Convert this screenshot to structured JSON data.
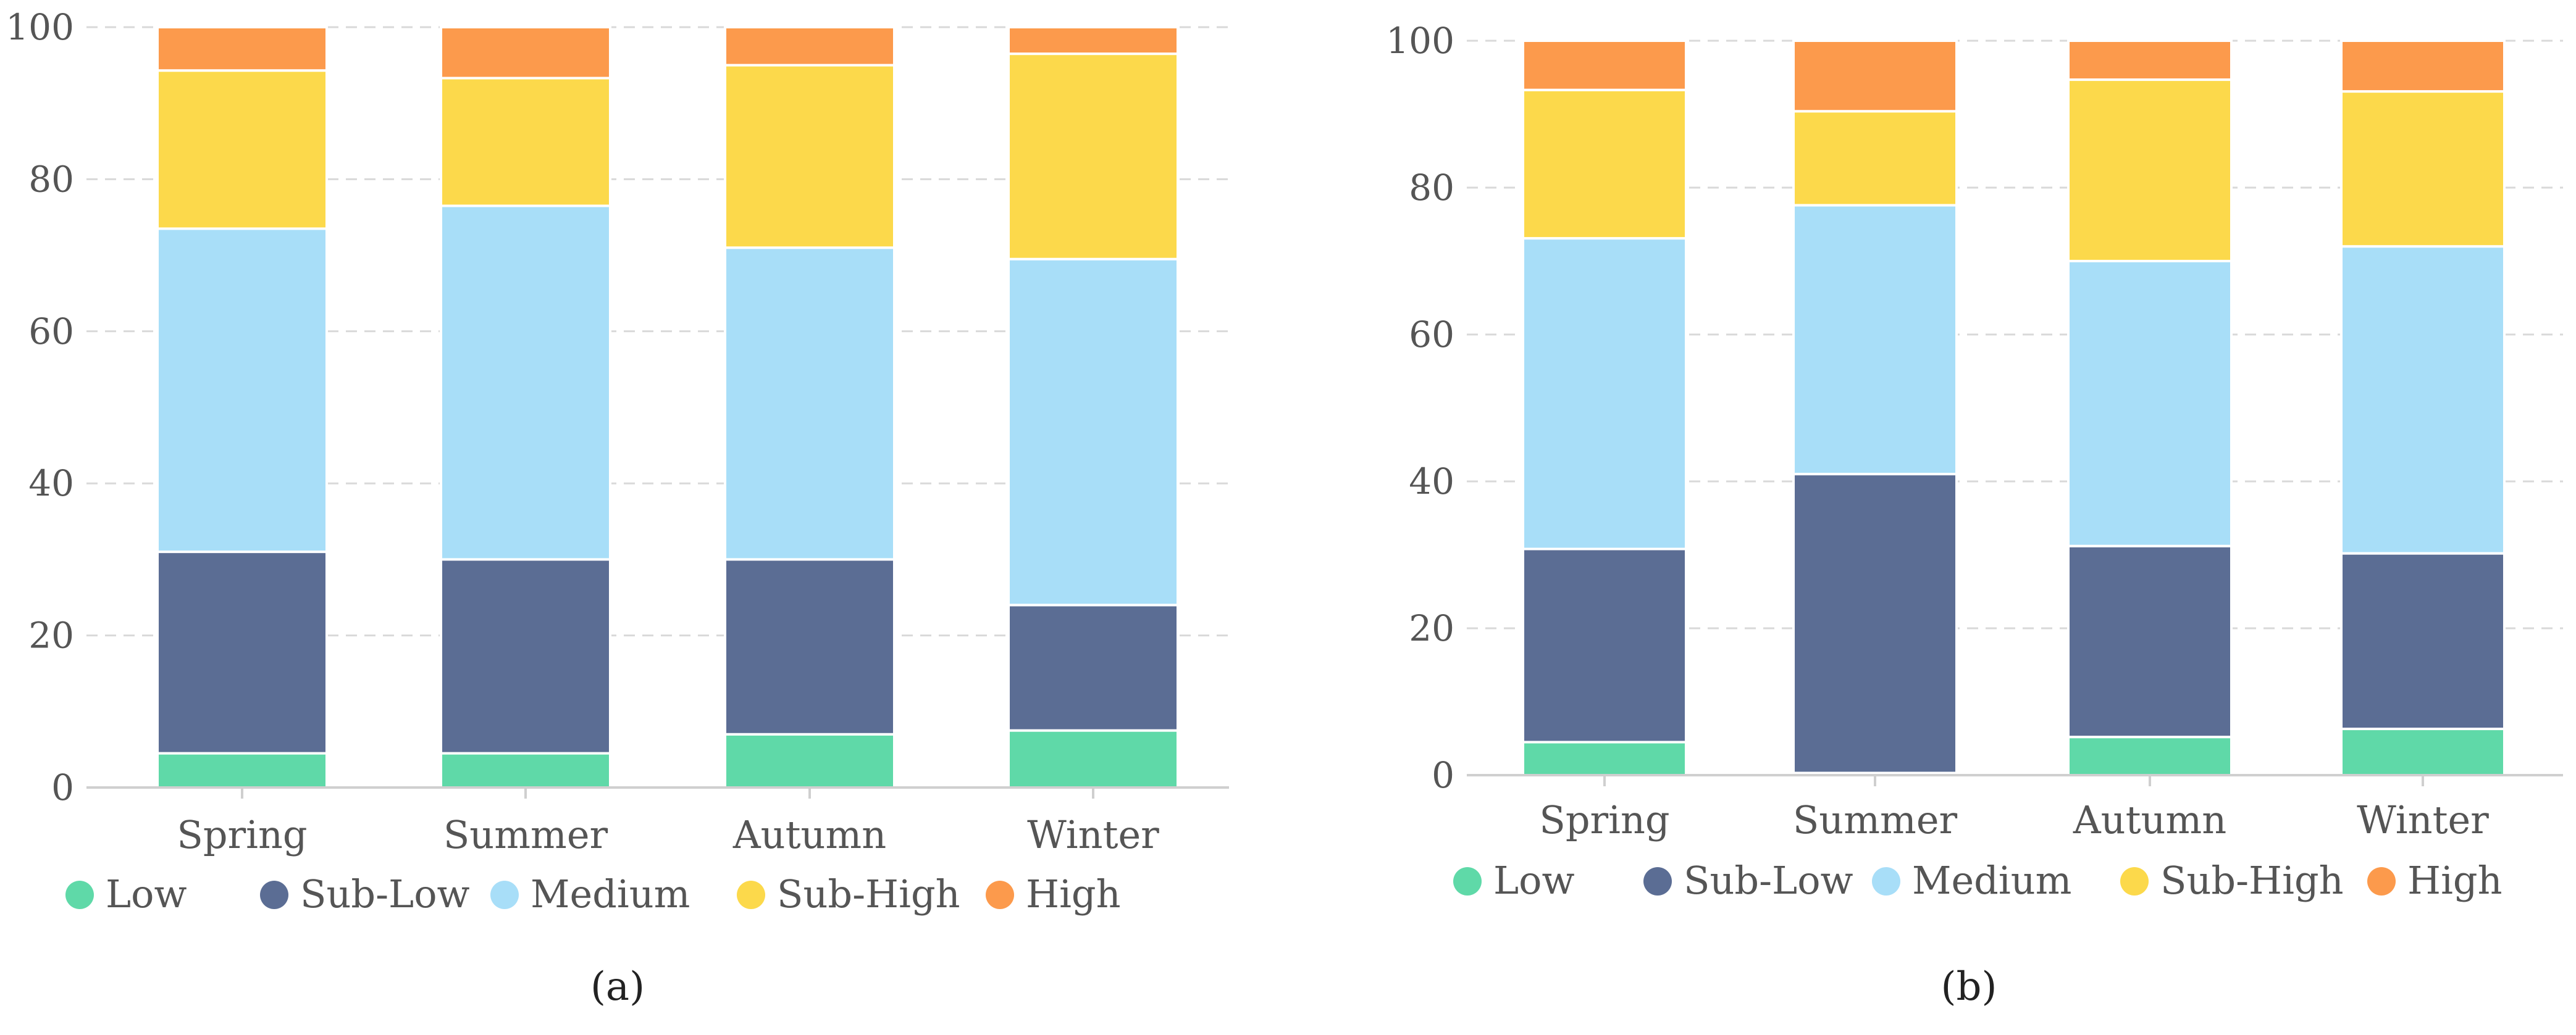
{
  "chart_data": [
    {
      "type": "bar",
      "stacked": true,
      "panel_label": "(a)",
      "categories": [
        "Spring",
        "Summer",
        "Autumn",
        "Winter"
      ],
      "ylim": [
        0,
        100
      ],
      "yticks": [
        "0",
        "20",
        "40",
        "60",
        "80",
        "100"
      ],
      "grid": true,
      "legend_position": "bottom",
      "series": [
        {
          "name": "Low",
          "color": "#5fd9a8",
          "values": [
            4.5,
            4.5,
            7,
            7.5
          ]
        },
        {
          "name": "Sub-Low",
          "color": "#5b6d94",
          "values": [
            26.5,
            25.5,
            23,
            16.5
          ]
        },
        {
          "name": "Medium",
          "color": "#a8def8",
          "values": [
            42.5,
            46.5,
            41,
            45.5
          ]
        },
        {
          "name": "Sub-High",
          "color": "#fcd94b",
          "values": [
            20.8,
            16.8,
            24,
            27
          ]
        },
        {
          "name": "High",
          "color": "#fc9a4c",
          "values": [
            5.7,
            6.7,
            5,
            3.5
          ]
        }
      ]
    },
    {
      "type": "bar",
      "stacked": true,
      "panel_label": "(b)",
      "categories": [
        "Spring",
        "Summer",
        "Autumn",
        "Winter"
      ],
      "ylim": [
        0,
        100
      ],
      "yticks": [
        "0",
        "20",
        "40",
        "60",
        "80",
        "100"
      ],
      "grid": true,
      "legend_position": "bottom",
      "series": [
        {
          "name": "Low",
          "color": "#5fd9a8",
          "values": [
            4.5,
            0.3,
            5.2,
            6.3
          ]
        },
        {
          "name": "Sub-Low",
          "color": "#5b6d94",
          "values": [
            26.3,
            40.7,
            26,
            23.9
          ]
        },
        {
          "name": "Medium",
          "color": "#a8def8",
          "values": [
            42.3,
            36.6,
            38.8,
            41.8
          ]
        },
        {
          "name": "Sub-High",
          "color": "#fcd94b",
          "values": [
            20.2,
            12.8,
            24.7,
            21.1
          ]
        },
        {
          "name": "High",
          "color": "#fc9a4c",
          "values": [
            6.7,
            9.6,
            5.3,
            6.9
          ]
        }
      ]
    }
  ]
}
